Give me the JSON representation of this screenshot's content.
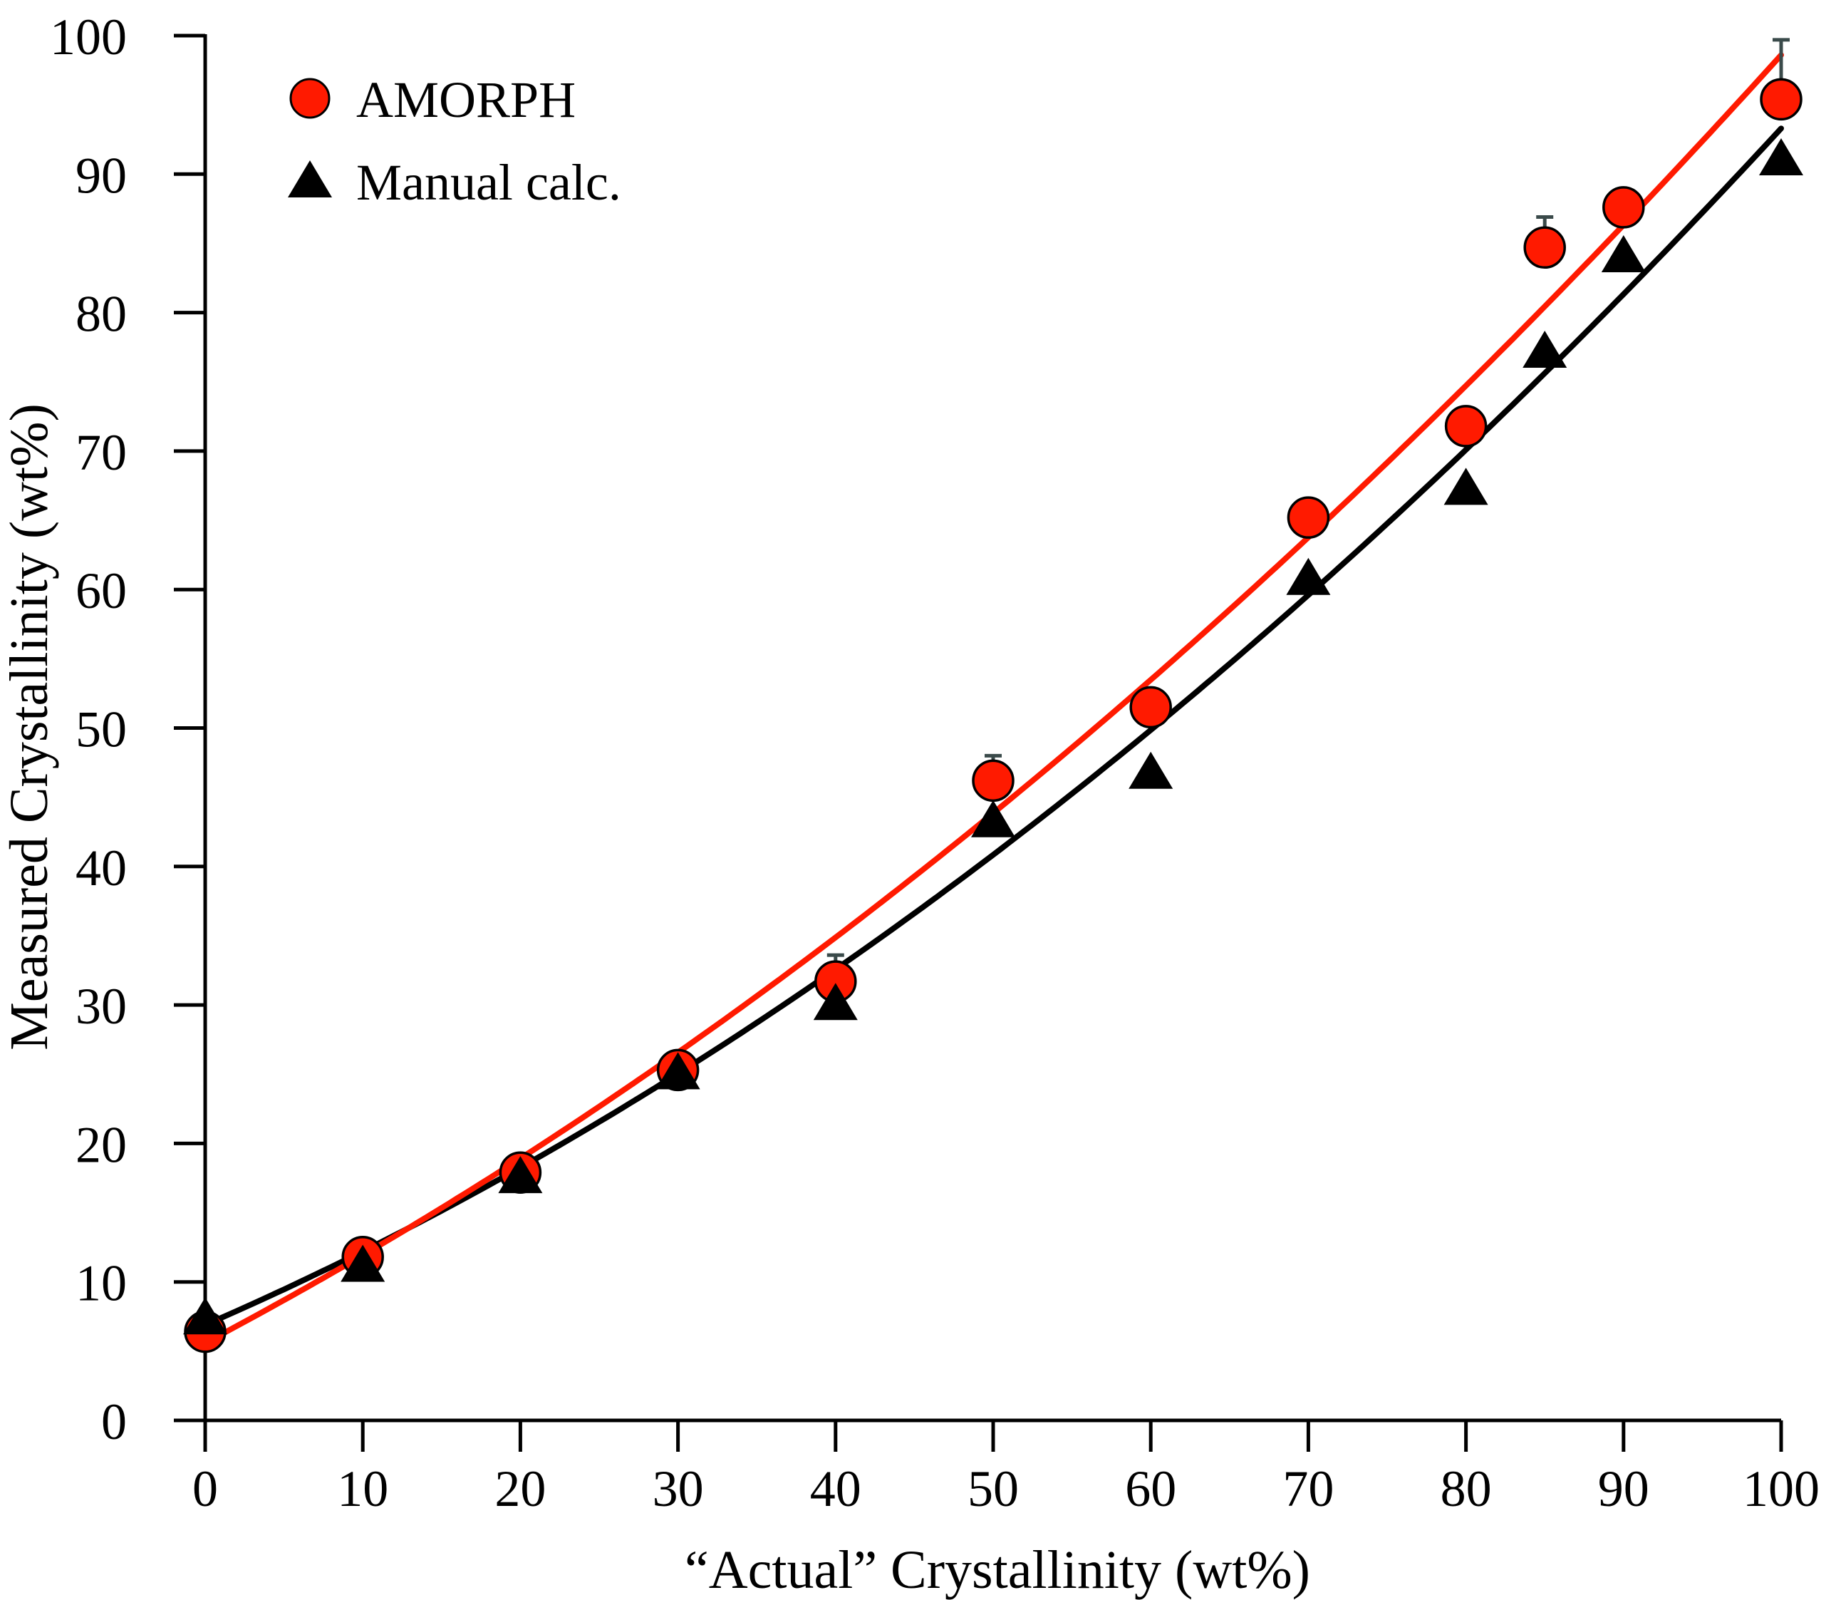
{
  "chart_data": {
    "type": "scatter",
    "xlabel": "“Actual” Crystallinity (wt%)",
    "ylabel": "Measured Crystallinity (wt%)",
    "xlim": [
      0,
      100
    ],
    "ylim": [
      0,
      100
    ],
    "x_ticks": [
      0,
      10,
      20,
      30,
      40,
      50,
      60,
      70,
      80,
      90,
      100
    ],
    "y_ticks": [
      0,
      10,
      20,
      30,
      40,
      50,
      60,
      70,
      80,
      90,
      100
    ],
    "grid": false,
    "legend_position": "top-left",
    "series": [
      {
        "name": "AMORPH",
        "marker": "circle",
        "color": "#ff1a00",
        "line_color": "#ff1a00",
        "points": [
          {
            "x": 0,
            "y": 6.4
          },
          {
            "x": 10,
            "y": 11.8
          },
          {
            "x": 20,
            "y": 17.9
          },
          {
            "x": 30,
            "y": 25.3
          },
          {
            "x": 40,
            "y": 31.7,
            "err": 1.9
          },
          {
            "x": 50,
            "y": 46.2,
            "err": 1.8
          },
          {
            "x": 60,
            "y": 51.5
          },
          {
            "x": 70,
            "y": 65.2
          },
          {
            "x": 80,
            "y": 71.8
          },
          {
            "x": 85,
            "y": 84.7,
            "err": 2.2
          },
          {
            "x": 90,
            "y": 87.6
          },
          {
            "x": 100,
            "y": 95.4,
            "err": 4.3
          }
        ],
        "fit": {
          "a": 5.6,
          "b": 0.6,
          "c": 0.0033
        }
      },
      {
        "name": "Manual calc.",
        "marker": "triangle",
        "color": "#000000",
        "line_color": "#000000",
        "points": [
          {
            "x": 0,
            "y": 7.5
          },
          {
            "x": 10,
            "y": 11.3
          },
          {
            "x": 20,
            "y": 17.7
          },
          {
            "x": 30,
            "y": 25.2
          },
          {
            "x": 40,
            "y": 30.2
          },
          {
            "x": 50,
            "y": 43.4
          },
          {
            "x": 60,
            "y": 46.9
          },
          {
            "x": 70,
            "y": 60.9
          },
          {
            "x": 80,
            "y": 67.4
          },
          {
            "x": 85,
            "y": 77.3
          },
          {
            "x": 90,
            "y": 84.2
          },
          {
            "x": 100,
            "y": 91.2
          }
        ],
        "fit": {
          "a": 6.9,
          "b": 0.4938,
          "c": 0.003702
        }
      }
    ]
  }
}
